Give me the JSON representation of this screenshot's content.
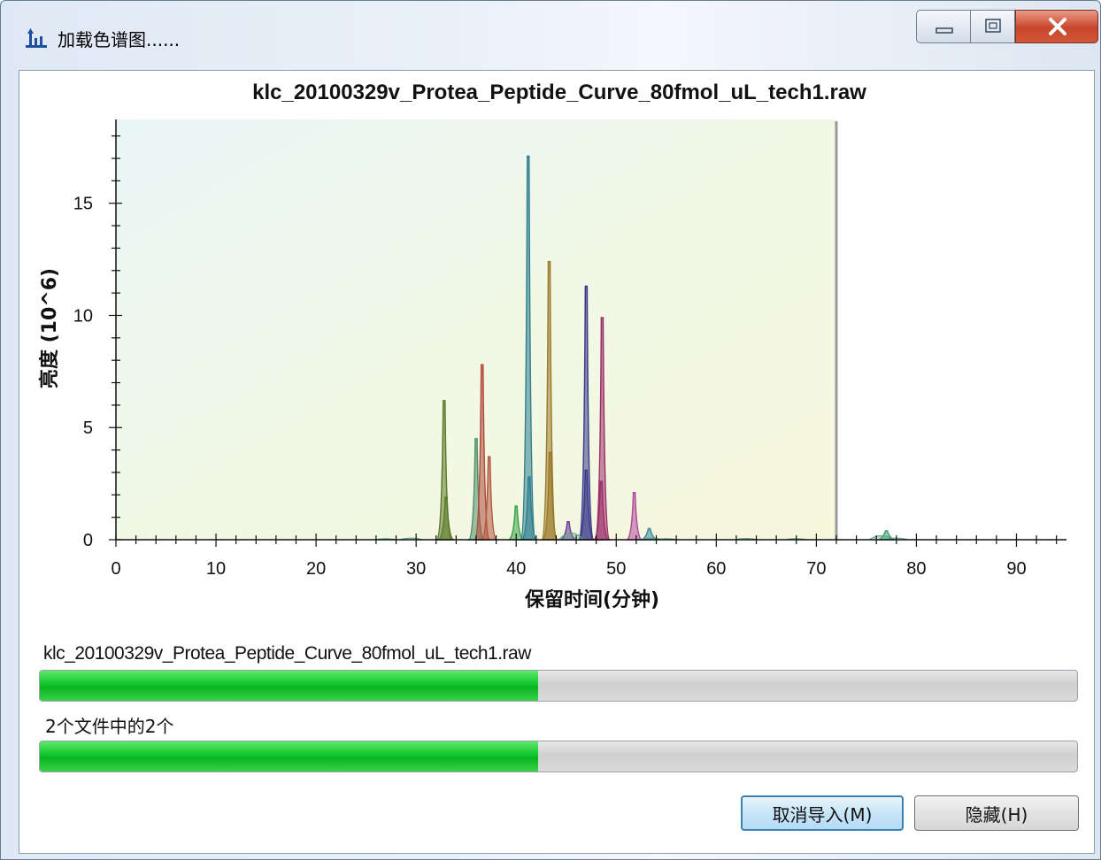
{
  "window": {
    "title": "加载色谱图......",
    "buttons": {
      "minimize": "minimize",
      "maximize": "maximize",
      "close": "close"
    }
  },
  "chart_data": {
    "type": "area",
    "title": "klc_20100329v_Protea_Peptide_Curve_80fmol_uL_tech1.raw",
    "xlabel": "保留时间(分钟)",
    "ylabel": "亮度 (10^6)",
    "xlim": [
      0,
      95
    ],
    "ylim": [
      0,
      18.5
    ],
    "x_ticks": [
      "0",
      "10",
      "20",
      "30",
      "40",
      "50",
      "60",
      "70",
      "80",
      "90"
    ],
    "y_ticks": [
      "0",
      "5",
      "10",
      "15"
    ],
    "progress_marker_x": 72,
    "series": [
      {
        "color": "#5b7a2a",
        "peaks": [
          [
            32.8,
            6.2
          ],
          [
            33.0,
            1.9
          ]
        ]
      },
      {
        "color": "#4f8f6a",
        "peaks": [
          [
            36.0,
            4.5
          ]
        ]
      },
      {
        "color": "#b04a3a",
        "peaks": [
          [
            36.6,
            7.8
          ]
        ]
      },
      {
        "color": "#b25a3f",
        "peaks": [
          [
            37.3,
            3.7
          ]
        ]
      },
      {
        "color": "#3aa24a",
        "peaks": [
          [
            40.0,
            1.5
          ]
        ]
      },
      {
        "color": "#2f7f8f",
        "peaks": [
          [
            41.2,
            17.1
          ],
          [
            41.3,
            2.8
          ]
        ]
      },
      {
        "color": "#9a7a2a",
        "peaks": [
          [
            43.3,
            12.4
          ],
          [
            43.4,
            3.9
          ]
        ]
      },
      {
        "color": "#6a3a9a",
        "peaks": [
          [
            45.2,
            0.8
          ]
        ]
      },
      {
        "color": "#3a3a8a",
        "peaks": [
          [
            47.0,
            11.3
          ],
          [
            47.0,
            3.1
          ]
        ]
      },
      {
        "color": "#9a2f6a",
        "peaks": [
          [
            48.6,
            9.9
          ],
          [
            48.5,
            2.6
          ]
        ]
      },
      {
        "color": "#b04a9a",
        "peaks": [
          [
            51.8,
            2.1
          ]
        ]
      },
      {
        "color": "#3a8aa0",
        "peaks": [
          [
            53.3,
            0.5
          ]
        ]
      },
      {
        "color": "#3aa070",
        "peaks": [
          [
            77.0,
            0.4
          ]
        ]
      }
    ]
  },
  "progress": {
    "file_label": "klc_20100329v_Protea_Peptide_Curve_80fmol_uL_tech1.raw",
    "file_progress": 0.48,
    "count_label": "2个文件中的2个",
    "overall_progress": 0.48
  },
  "buttons": {
    "cancel_import": "取消导入(M)",
    "hide": "隐藏(H)"
  }
}
